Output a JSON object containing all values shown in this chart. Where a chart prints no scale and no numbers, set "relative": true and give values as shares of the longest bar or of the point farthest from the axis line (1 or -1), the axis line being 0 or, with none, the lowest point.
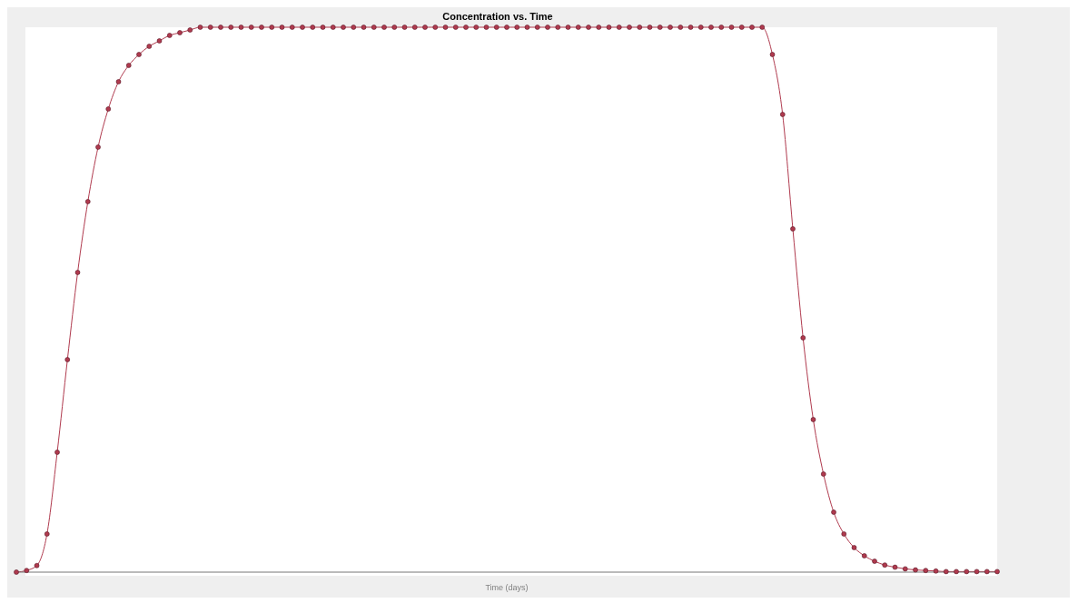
{
  "chart_data": {
    "type": "line",
    "title": "Concentration vs. Time",
    "xlabel": "Time (days)",
    "relative": true,
    "marker": "circle",
    "line_style": "solid",
    "legend": false,
    "categories": [
      null,
      null,
      null,
      null,
      null,
      null,
      null,
      null,
      null,
      null,
      null,
      null,
      null,
      null,
      null,
      null,
      null,
      null,
      null,
      null,
      null,
      null,
      null,
      null,
      null,
      null,
      null,
      null,
      null,
      null,
      null,
      null,
      null,
      null,
      null,
      null,
      null,
      null,
      null,
      null,
      null,
      null,
      null,
      null,
      null,
      null,
      null,
      null,
      null,
      null,
      null,
      null,
      null,
      null,
      null,
      null,
      null,
      null,
      null,
      null,
      null,
      null,
      null,
      null,
      null,
      null,
      null,
      null,
      null,
      null,
      null,
      null,
      null,
      null,
      null,
      null,
      null,
      null,
      null,
      null,
      null,
      null,
      null,
      null,
      null,
      null,
      null,
      null,
      null,
      null,
      null,
      null,
      null,
      null,
      null,
      null,
      null
    ],
    "series": [
      {
        "color": "#b03a4e",
        "values": [
          0,
          0.003,
          0.012,
          0.07,
          0.22,
          0.39,
          0.55,
          0.68,
          0.78,
          0.85,
          0.9,
          0.93,
          0.95,
          0.965,
          0.975,
          0.985,
          0.99,
          0.995,
          1,
          1,
          1,
          1,
          1,
          1,
          1,
          1,
          1,
          1,
          1,
          1,
          1,
          1,
          1,
          1,
          1,
          1,
          1,
          1,
          1,
          1,
          1,
          1,
          1,
          1,
          1,
          1,
          1,
          1,
          1,
          1,
          1,
          1,
          1,
          1,
          1,
          1,
          1,
          1,
          1,
          1,
          1,
          1,
          1,
          1,
          1,
          1,
          1,
          1,
          1,
          1,
          1,
          1,
          1,
          1,
          0.95,
          0.84,
          0.63,
          0.43,
          0.28,
          0.18,
          0.11,
          0.07,
          0.045,
          0.03,
          0.02,
          0.013,
          0.009,
          0.006,
          0.004,
          0.003,
          0.002,
          0.001,
          0.001,
          0.001,
          0.001,
          0.001,
          0.001
        ]
      }
    ]
  }
}
